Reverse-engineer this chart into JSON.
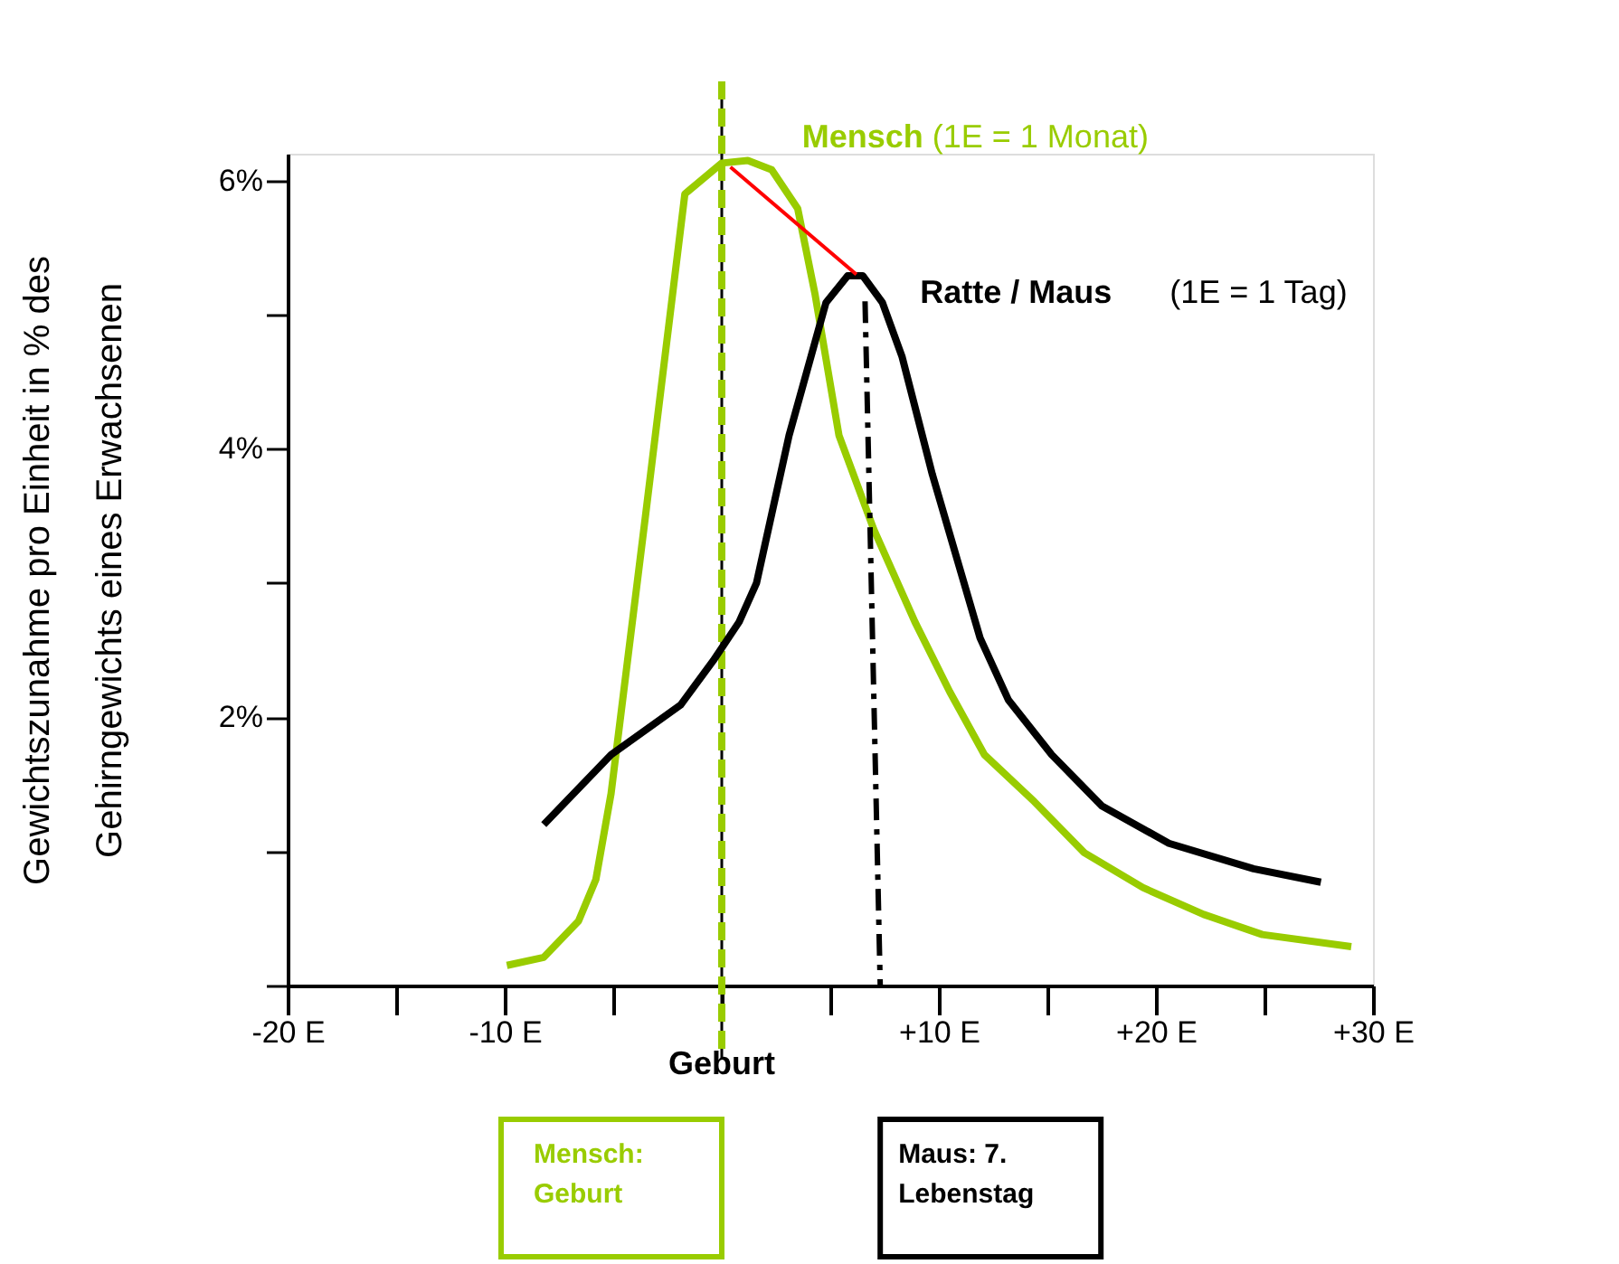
{
  "chart_data": {
    "type": "line",
    "ylabel": "Gewichtszunahme pro Einheit in % des Gehirngewichts eines Erwachsenen",
    "xlim": [
      -20,
      30
    ],
    "ylim": [
      0,
      6.2
    ],
    "xticks": [
      {
        "value": -20,
        "label": "-20 E"
      },
      {
        "value": -15,
        "label": null
      },
      {
        "value": -10,
        "label": "-10 E"
      },
      {
        "value": -5,
        "label": null
      },
      {
        "value": 0,
        "label": null
      },
      {
        "value": 5,
        "label": null
      },
      {
        "value": 10,
        "label": "+10 E"
      },
      {
        "value": 15,
        "label": null
      },
      {
        "value": 20,
        "label": "+20 E"
      },
      {
        "value": 25,
        "label": null
      },
      {
        "value": 30,
        "label": "+30 E"
      }
    ],
    "yticks": [
      {
        "value": 0,
        "label": null
      },
      {
        "value": 1,
        "label": null
      },
      {
        "value": 2,
        "label": "2%"
      },
      {
        "value": 3,
        "label": null
      },
      {
        "value": 4,
        "label": "4%"
      },
      {
        "value": 5,
        "label": null
      },
      {
        "value": 6,
        "label": "6%"
      }
    ],
    "grid": false,
    "marker": "none",
    "series": [
      {
        "name": "Mensch",
        "color": "#99cc00",
        "x": [
          -9.9,
          -8.2,
          -6.6,
          -5.8,
          -5.1,
          -3.5,
          -1.7,
          0,
          1.2,
          2.3,
          3.5,
          4.3,
          5.4,
          7,
          8.9,
          10.5,
          12.1,
          14.4,
          16.7,
          19.4,
          22.2,
          24.9,
          29
        ],
        "values": [
          0.15,
          0.21,
          0.48,
          0.79,
          1.43,
          3.52,
          5.9,
          6.13,
          6.15,
          6.08,
          5.79,
          5.15,
          4.1,
          3.4,
          2.71,
          2.19,
          1.72,
          1.37,
          0.99,
          0.73,
          0.53,
          0.38,
          0.29
        ]
      },
      {
        "name": "Ratte / Maus",
        "color": "#000000",
        "x": [
          -8.2,
          -5.1,
          -1.9,
          -0.4,
          0.8,
          1.6,
          3.1,
          4.8,
          5.8,
          6.5,
          7.4,
          8.3,
          9.7,
          11.9,
          13.2,
          15.2,
          17.5,
          20.6,
          24.5,
          27.6
        ],
        "values": [
          1.2,
          1.72,
          2.09,
          2.42,
          2.71,
          3.0,
          4.1,
          5.09,
          5.29,
          5.29,
          5.09,
          4.69,
          3.81,
          2.59,
          2.13,
          1.72,
          1.34,
          1.06,
          0.87,
          0.77
        ]
      },
      {
        "color": "#000000",
        "line_style": "dashed",
        "x": [
          6.6,
          7.3
        ],
        "values": [
          5.1,
          0
        ]
      },
      {
        "color": "#ff0000",
        "x": [
          6.2,
          0.4
        ],
        "values": [
          5.3,
          6.1
        ]
      }
    ],
    "ref_lines": [
      {
        "axis": "x",
        "value": 0,
        "color": "#000000",
        "line_style": "solid"
      },
      {
        "axis": "x",
        "value": 0,
        "color": "#99cc00",
        "line_style": "dashed"
      }
    ],
    "annotations": [
      "(1E = 1 Monat)",
      "(1E = 1 Tag)",
      "Geburt",
      "Mensch: Geburt",
      "Maus: 7. Lebenstag"
    ]
  }
}
